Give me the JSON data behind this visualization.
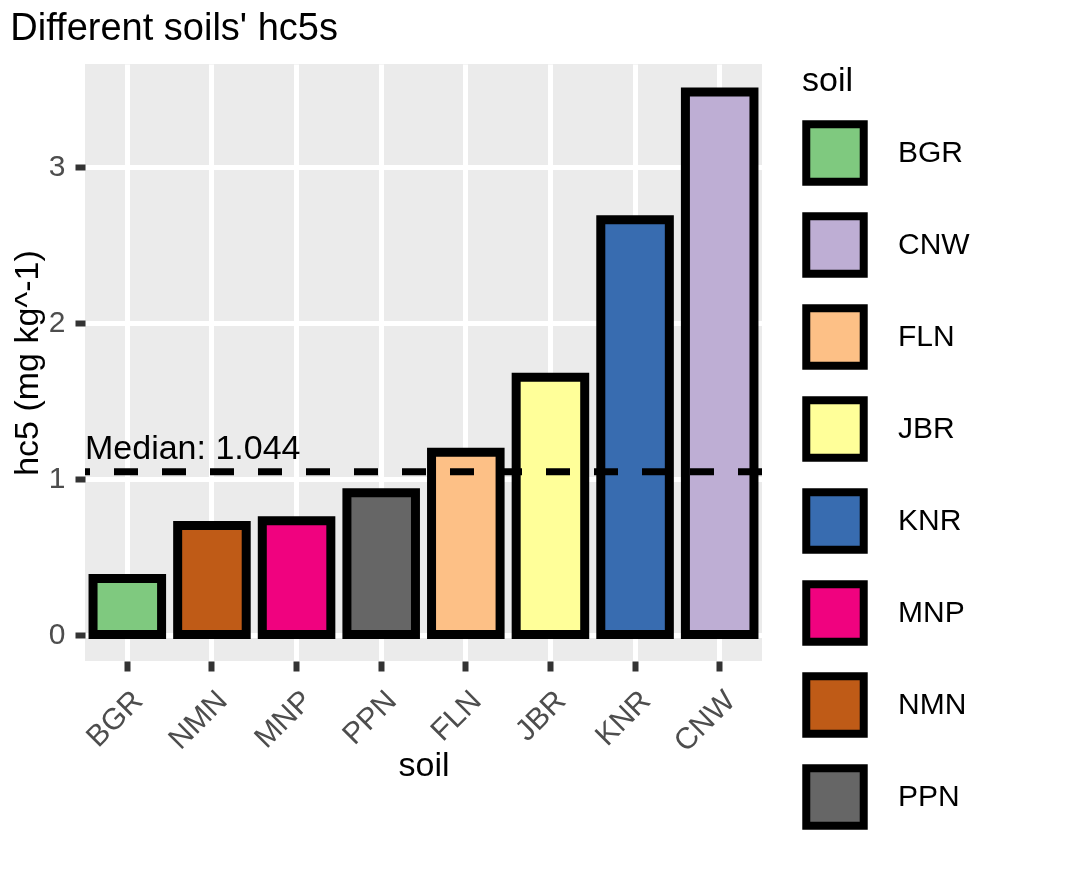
{
  "chart_data": {
    "type": "bar",
    "title": "Different soils' hc5s",
    "xlabel": "soil",
    "ylabel": "hc5 (mg kg^-1)",
    "legend_title": "soil",
    "categories": [
      "BGR",
      "NMN",
      "MNP",
      "PPN",
      "FLN",
      "JBR",
      "KNR",
      "CNW"
    ],
    "series": [
      {
        "name": "BGR",
        "color": "#7fc97f",
        "values": [
          0.36,
          null,
          null,
          null,
          null,
          null,
          null,
          null
        ]
      },
      {
        "name": "CNW",
        "color": "#beaed4",
        "values": [
          null,
          null,
          null,
          null,
          null,
          null,
          null,
          3.48
        ]
      },
      {
        "name": "FLN",
        "color": "#fdc086",
        "values": [
          null,
          null,
          null,
          null,
          1.17,
          null,
          null,
          null
        ]
      },
      {
        "name": "JBR",
        "color": "#ffff99",
        "values": [
          null,
          null,
          null,
          null,
          null,
          1.65,
          null,
          null
        ]
      },
      {
        "name": "KNR",
        "color": "#386cb0",
        "values": [
          null,
          null,
          null,
          null,
          null,
          null,
          2.66,
          null
        ]
      },
      {
        "name": "MNP",
        "color": "#f0027f",
        "values": [
          null,
          null,
          0.73,
          null,
          null,
          null,
          null,
          null
        ]
      },
      {
        "name": "NMN",
        "color": "#bf5b17",
        "values": [
          null,
          0.7,
          null,
          null,
          null,
          null,
          null,
          null
        ]
      },
      {
        "name": "PPN",
        "color": "#666666",
        "values": [
          null,
          null,
          null,
          0.91,
          null,
          null,
          null,
          null
        ]
      }
    ],
    "ylim": [
      -0.17,
      3.66
    ],
    "yticks": [
      0,
      1,
      2,
      3
    ],
    "grid": true,
    "legend": "right",
    "ref_lines": [
      {
        "axis": "y",
        "value": 1.044,
        "label": "Median: 1.044",
        "color": "#000000",
        "line_style": "dashed"
      }
    ]
  }
}
